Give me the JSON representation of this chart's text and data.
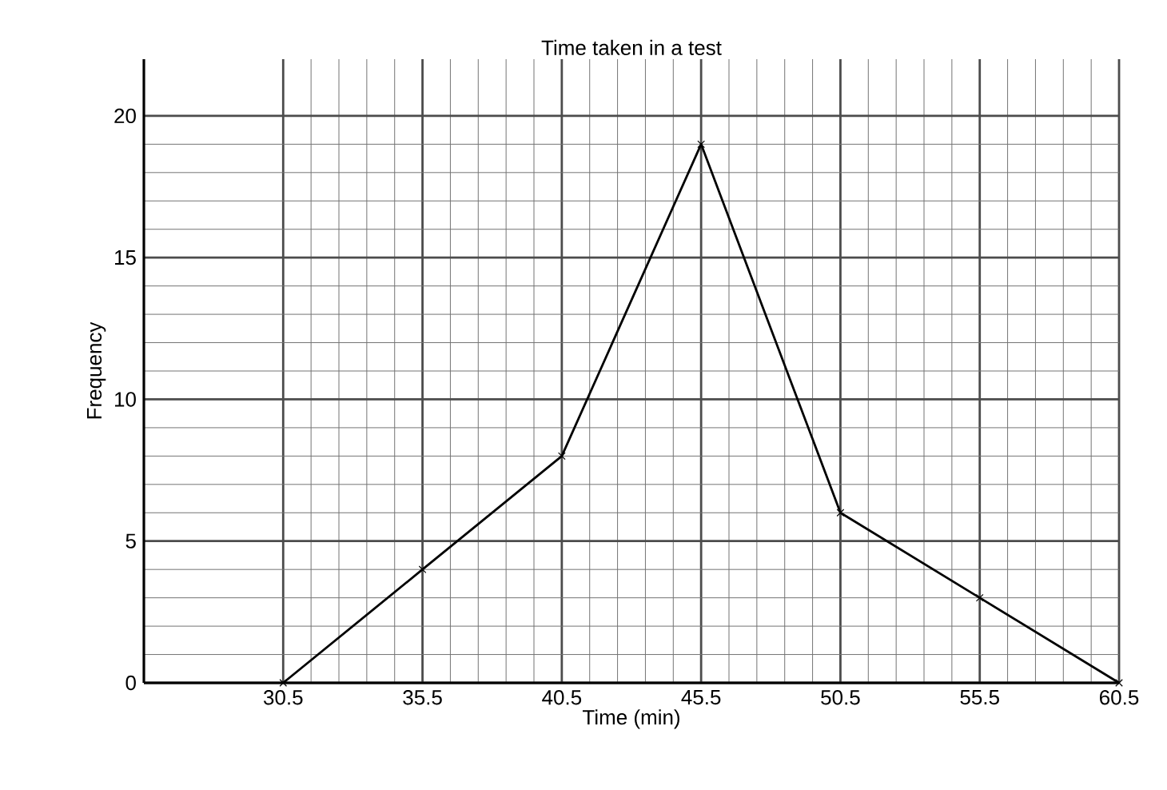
{
  "chart_data": {
    "type": "line",
    "title": "Time taken in a test",
    "xlabel": "Time (min)",
    "ylabel": "Frequency",
    "x": [
      30.5,
      35.5,
      40.5,
      45.5,
      50.5,
      55.5,
      60.5
    ],
    "series": [
      {
        "color": "#000000",
        "values": [
          0,
          4,
          8,
          19,
          6,
          3,
          0
        ]
      }
    ],
    "xlim": [
      25.5,
      60.5
    ],
    "ylim": [
      0,
      22
    ],
    "xticks": [
      30.5,
      35.5,
      40.5,
      45.5,
      50.5,
      55.5,
      60.5
    ],
    "yticks": [
      0,
      5,
      10,
      15,
      20
    ],
    "grid": true,
    "marker": "cross",
    "line_style": "solid"
  }
}
